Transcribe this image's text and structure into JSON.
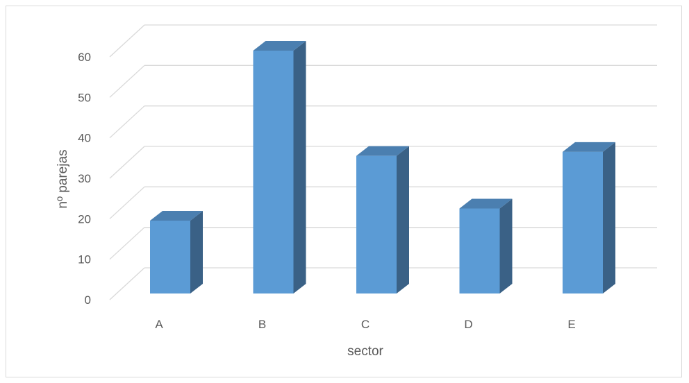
{
  "chart_data": {
    "type": "bar",
    "style": "3d-column",
    "categories": [
      "A",
      "B",
      "C",
      "D",
      "E"
    ],
    "values": [
      18,
      60,
      34,
      21,
      35
    ],
    "xlabel": "sector",
    "ylabel": "nº parejas",
    "ylim": [
      0,
      60
    ],
    "yticks": [
      0,
      10,
      20,
      30,
      40,
      50,
      60
    ],
    "grid": true,
    "legend": "none",
    "colors": {
      "bar_front": "#5b9bd5",
      "bar_side": "#3a6186",
      "bar_top": "#4b7fb0",
      "grid": "#d9d9d9",
      "text": "#595959"
    }
  }
}
